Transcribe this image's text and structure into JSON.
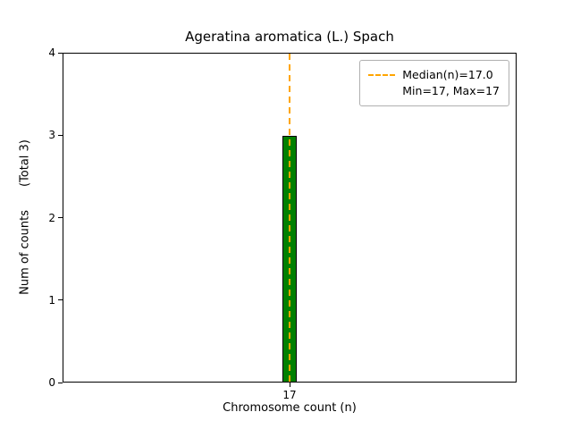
{
  "chart_data": {
    "type": "bar",
    "title": "Ageratina aromatica (L.) Spach",
    "xlabel": "Chromosome count (n)",
    "ylabel": "Num of counts",
    "ylabel_note": "(Total 3)",
    "categories": [
      "17"
    ],
    "values": [
      3
    ],
    "total_counts": 3,
    "ylim": [
      0,
      4
    ],
    "yticks": [
      0,
      1,
      2,
      3,
      4
    ],
    "median": 17.0,
    "min": 17,
    "max": 17,
    "bar_color": "#008000",
    "bar_edge_color": "#000000",
    "median_line_color": "#FFA500",
    "legend": [
      "Median(n)=17.0",
      "Min=17, Max=17"
    ],
    "legend_position": "upper right",
    "grid": false
  }
}
